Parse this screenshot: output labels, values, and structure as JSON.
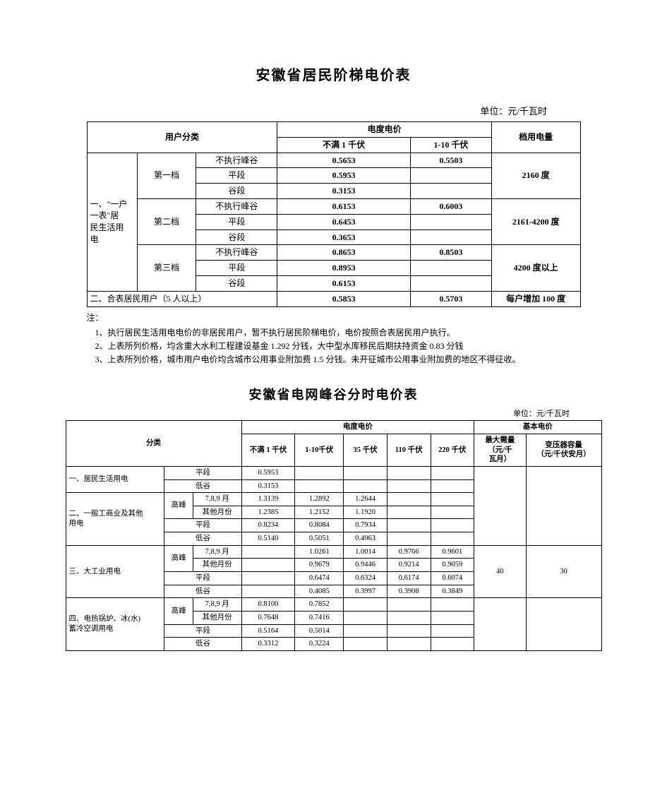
{
  "title1": "安徽省居民阶梯电价表",
  "unit1": "单位：元/千瓦时",
  "tbl1": {
    "hdr_user_class": "用户分类",
    "hdr_energy_price": "电度电价",
    "hdr_sub_lt1kv": "不满 1 千伏",
    "hdr_sub_1_10kv": "1-10 千伏",
    "hdr_tier_usage": "档用电量",
    "cat1": "一、\"一户\n一表\"居\n民生活用\n电",
    "tier1": "第一档",
    "tier2": "第二档",
    "tier3": "第三档",
    "r_no_peak": "不执行峰谷",
    "r_flat": "平段",
    "r_valley": "谷段",
    "cat2": "二、合表居民用户（5 人以上）",
    "t1": {
      "no_peak_lt1": "0.5653",
      "no_peak_110": "0.5503",
      "flat_lt1": "0.5953",
      "valley_lt1": "0.3153",
      "usage": "2160 度"
    },
    "t2": {
      "no_peak_lt1": "0.6153",
      "no_peak_110": "0.6003",
      "flat_lt1": "0.6453",
      "valley_lt1": "0.3653",
      "usage": "2161-4200 度"
    },
    "t3": {
      "no_peak_lt1": "0.8653",
      "no_peak_110": "0.8503",
      "flat_lt1": "0.8953",
      "valley_lt1": "0.6153",
      "usage": "4200 度以上"
    },
    "shared": {
      "lt1": "0.5853",
      "110": "0.5703",
      "usage": "每户增加 100 度"
    }
  },
  "notes_title": "注：",
  "notes": [
    "1、执行居民生活用电电价的非居民用户，暂不执行居民阶梯电价，电价按照合表居民用户执行。",
    "2、上表所列价格，均含重大水利工程建设基金 1.292 分钱，大中型水库移民后期扶持资金 0.83 分钱",
    "3、上表所列价格，城市用户电价均含城市公用事业附加费 1.5 分钱。未开征城市公用事业附加费的地区不得征收。"
  ],
  "title2": "安徽省电网峰谷分时电价表",
  "unit2": "单位：元/千瓦时",
  "tbl2": {
    "hdr_class": "分类",
    "hdr_energy_price": "电度电价",
    "hdr_basic_price": "基本电价",
    "hdr_lt1": "不满 1 千伏",
    "hdr_1_10": "1-10千伏",
    "hdr_35": "35 千伏",
    "hdr_110": "110 千伏",
    "hdr_220": "220 千伏",
    "hdr_max_demand": "最大需量\n（元/千\n瓦月）",
    "hdr_trans_cap": "变压器容量\n（元/千伏安月）",
    "peak": "高峰",
    "flat": "平段",
    "valley": "低谷",
    "months_789": "7,8,9 月",
    "months_other": "其他月份",
    "cat1": "一、居民生活用电",
    "cat2": "二、一般工商业及其他\n用电",
    "cat3": "三、大工业用电",
    "cat4": "四、电热锅炉、冰(水)\n蓄冷空调用电",
    "r_c1_flat": {
      "lt1": "0.5953"
    },
    "r_c1_valley": {
      "lt1": "0.3153"
    },
    "r_c2_peak_789": {
      "lt1": "1.3139",
      "k110": "1.2892",
      "k35": "1.2644"
    },
    "r_c2_peak_other": {
      "lt1": "1.2385",
      "k110": "1.2152",
      "k35": "1.1920"
    },
    "r_c2_flat": {
      "lt1": "0.8234",
      "k110": "0.8084",
      "k35": "0.7934"
    },
    "r_c2_valley": {
      "lt1": "0.5140",
      "k110": "0.5051",
      "k35": "0.4963"
    },
    "r_c3_peak_789": {
      "k110": "1.0261",
      "k35": "1.0014",
      "k110v": "0.9766",
      "k220": "0.9601"
    },
    "r_c3_peak_other": {
      "k110": "0.9679",
      "k35": "0.9446",
      "k110v": "0.9214",
      "k220": "0.9059"
    },
    "r_c3_flat": {
      "k110": "0.6474",
      "k35": "0.6324",
      "k110v": "0.6174",
      "k220": "0.6074"
    },
    "r_c3_valley": {
      "k110": "0.4085",
      "k35": "0.3997",
      "k110v": "0.3908",
      "k220": "0.3849"
    },
    "r_c4_peak_789": {
      "lt1": "0.8100",
      "k110": "0.7852"
    },
    "r_c4_peak_other": {
      "lt1": "0.7648",
      "k110": "0.7416"
    },
    "r_c4_flat": {
      "lt1": "0.5164",
      "k110": "0.5014"
    },
    "r_c4_valley": {
      "lt1": "0.3312",
      "k110": "0.3224"
    },
    "basic_max": "40",
    "basic_trans": "30"
  }
}
